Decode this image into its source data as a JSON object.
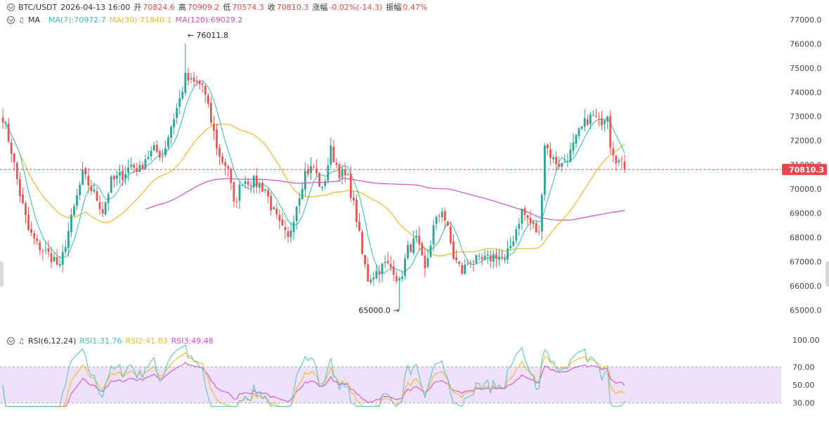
{
  "header": {
    "pair": "BTC/USDT",
    "datetime": "2026-04-13 16:00",
    "open_label": "开",
    "open": "70824.6",
    "high_label": "高",
    "high": "70909.2",
    "low_label": "低",
    "low": "70574.3",
    "close_label": "收",
    "close": "70810.3",
    "change_label": "涨幅",
    "change": "-0.02%(-14.3)",
    "amp_label": "振幅",
    "amp": "0.47%"
  },
  "ma_legend": {
    "label": "MA",
    "ma7": "MA(7):70972.7",
    "ma30": "MA(30):71840.1",
    "ma120": "MA(120):69029.2"
  },
  "rsi_legend": {
    "label": "RSI(6,12,24)",
    "rsi1": "RSI1:31.76",
    "rsi2": "RSI2:41.03",
    "rsi3": "RSI3:49.48"
  },
  "colors": {
    "up": "#26a69a",
    "down": "#ef5350",
    "ma7": "#3cc2b4",
    "ma30": "#f2b824",
    "ma120": "#d84ccf",
    "rsi1": "#5ac6c6",
    "rsi2": "#f2b824",
    "rsi3": "#d84ccf",
    "rsi_band": "#efe1fb",
    "last_price": "#e8474a"
  },
  "chart_data": [
    {
      "type": "candlestick",
      "title": "BTC/USDT",
      "ylim": [
        64700,
        77400
      ],
      "y_ticks": [
        "77000.0",
        "76000.0",
        "75000.0",
        "74000.0",
        "73000.0",
        "72000.0",
        "71000.0",
        "70000.0",
        "69000.0",
        "68000.0",
        "67000.0",
        "66000.0",
        "65000.0"
      ],
      "last_price": 70810.3,
      "last_price_label": "70810.3",
      "annotations": [
        {
          "text": "← 76011.8",
          "value": 76011.8,
          "candle_index": 64
        },
        {
          "text": "65000.0 →",
          "value": 65000.0,
          "candle_index": 139
        }
      ],
      "close_waypoints": [
        [
          0,
          73000
        ],
        [
          3,
          71600
        ],
        [
          6,
          69800
        ],
        [
          9,
          68300
        ],
        [
          12,
          67700
        ],
        [
          15,
          67400
        ],
        [
          18,
          67100
        ],
        [
          20,
          66700
        ],
        [
          22,
          67800
        ],
        [
          25,
          69200
        ],
        [
          28,
          70600
        ],
        [
          30,
          70200
        ],
        [
          33,
          69600
        ],
        [
          35,
          69100
        ],
        [
          38,
          70300
        ],
        [
          42,
          70600
        ],
        [
          45,
          71000
        ],
        [
          48,
          70800
        ],
        [
          50,
          71300
        ],
        [
          53,
          71600
        ],
        [
          56,
          71400
        ],
        [
          59,
          72600
        ],
        [
          62,
          73700
        ],
        [
          64,
          74600
        ],
        [
          66,
          74400
        ],
        [
          70,
          74300
        ],
        [
          73,
          72800
        ],
        [
          76,
          71300
        ],
        [
          79,
          70900
        ],
        [
          81,
          69300
        ],
        [
          84,
          70400
        ],
        [
          88,
          70300
        ],
        [
          92,
          70000
        ],
        [
          94,
          69300
        ],
        [
          97,
          68500
        ],
        [
          100,
          67900
        ],
        [
          103,
          69400
        ],
        [
          106,
          70700
        ],
        [
          109,
          70900
        ],
        [
          112,
          69900
        ],
        [
          115,
          71600
        ],
        [
          118,
          70700
        ],
        [
          121,
          70400
        ],
        [
          124,
          68800
        ],
        [
          126,
          67300
        ],
        [
          128,
          66300
        ],
        [
          131,
          66600
        ],
        [
          134,
          66900
        ],
        [
          137,
          66700
        ],
        [
          139,
          66100
        ],
        [
          142,
          67500
        ],
        [
          145,
          67900
        ],
        [
          148,
          66600
        ],
        [
          151,
          68400
        ],
        [
          154,
          69200
        ],
        [
          156,
          68300
        ],
        [
          158,
          67200
        ],
        [
          161,
          66600
        ],
        [
          164,
          67100
        ],
        [
          167,
          67000
        ],
        [
          170,
          67100
        ],
        [
          173,
          67300
        ],
        [
          176,
          67000
        ],
        [
          179,
          68000
        ],
        [
          182,
          69100
        ],
        [
          185,
          68600
        ],
        [
          188,
          68100
        ],
        [
          190,
          71900
        ],
        [
          193,
          71200
        ],
        [
          196,
          71000
        ],
        [
          199,
          71500
        ],
        [
          202,
          72300
        ],
        [
          205,
          72900
        ],
        [
          207,
          73000
        ],
        [
          209,
          72700
        ],
        [
          212,
          73200
        ],
        [
          213,
          71900
        ],
        [
          215,
          71300
        ],
        [
          218,
          70810
        ]
      ],
      "ma_series": [
        "MA(7)",
        "MA(30)",
        "MA(120)"
      ]
    },
    {
      "type": "line",
      "title": "RSI(6,12,24)",
      "ylim": [
        25,
        100
      ],
      "y_ticks": [
        "100.00",
        "70.00",
        "50.00",
        "30.00"
      ],
      "band": [
        30,
        70
      ],
      "series_names": [
        "RSI1",
        "RSI2",
        "RSI3"
      ],
      "last_values": [
        31.76,
        41.03,
        49.48
      ]
    }
  ]
}
